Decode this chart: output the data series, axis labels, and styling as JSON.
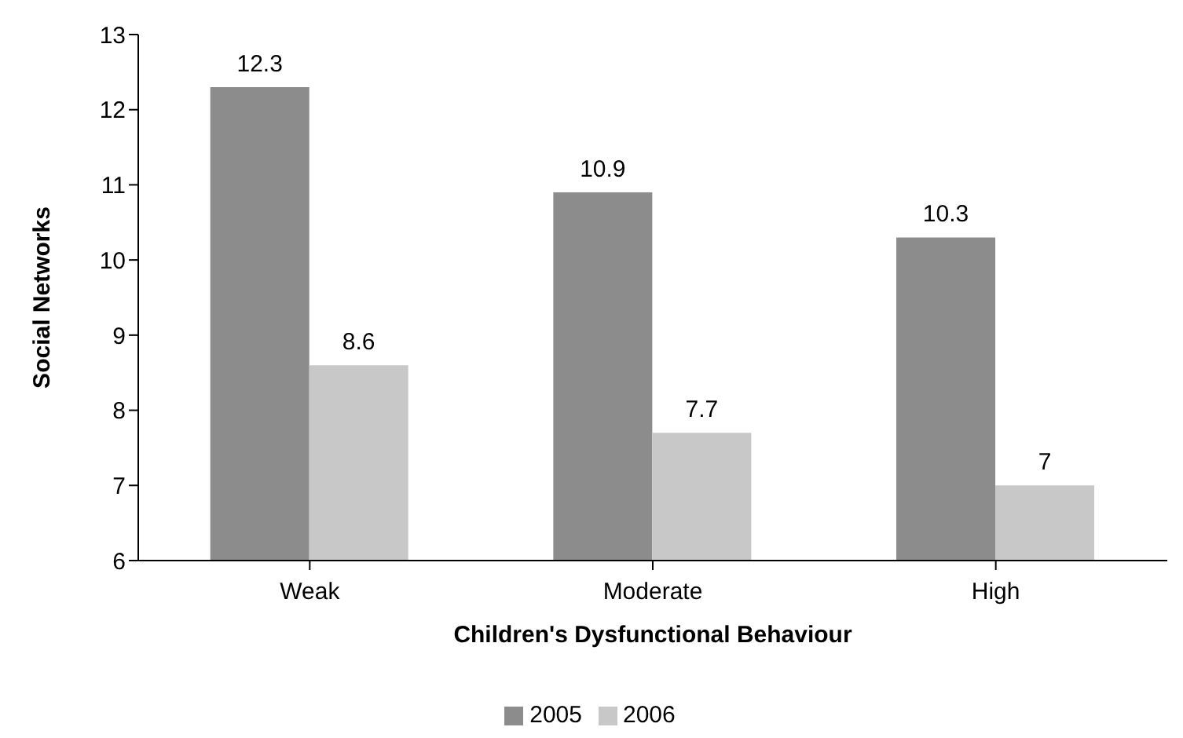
{
  "chart_data": {
    "type": "bar",
    "xlabel": "Children's Dysfunctional Behaviour",
    "ylabel": "Social Networks",
    "categories": [
      "Weak",
      "Moderate",
      "High"
    ],
    "series": [
      {
        "name": "2005",
        "color": "#8c8c8c",
        "values": [
          12.3,
          10.9,
          10.3
        ]
      },
      {
        "name": "2006",
        "color": "#c8c8c8",
        "values": [
          8.6,
          7.7,
          7
        ]
      }
    ],
    "ylim": [
      6,
      13
    ],
    "yticks": [
      6,
      7,
      8,
      9,
      10,
      11,
      12,
      13
    ],
    "grid": false,
    "legend": "bottom",
    "data_labels": true
  }
}
